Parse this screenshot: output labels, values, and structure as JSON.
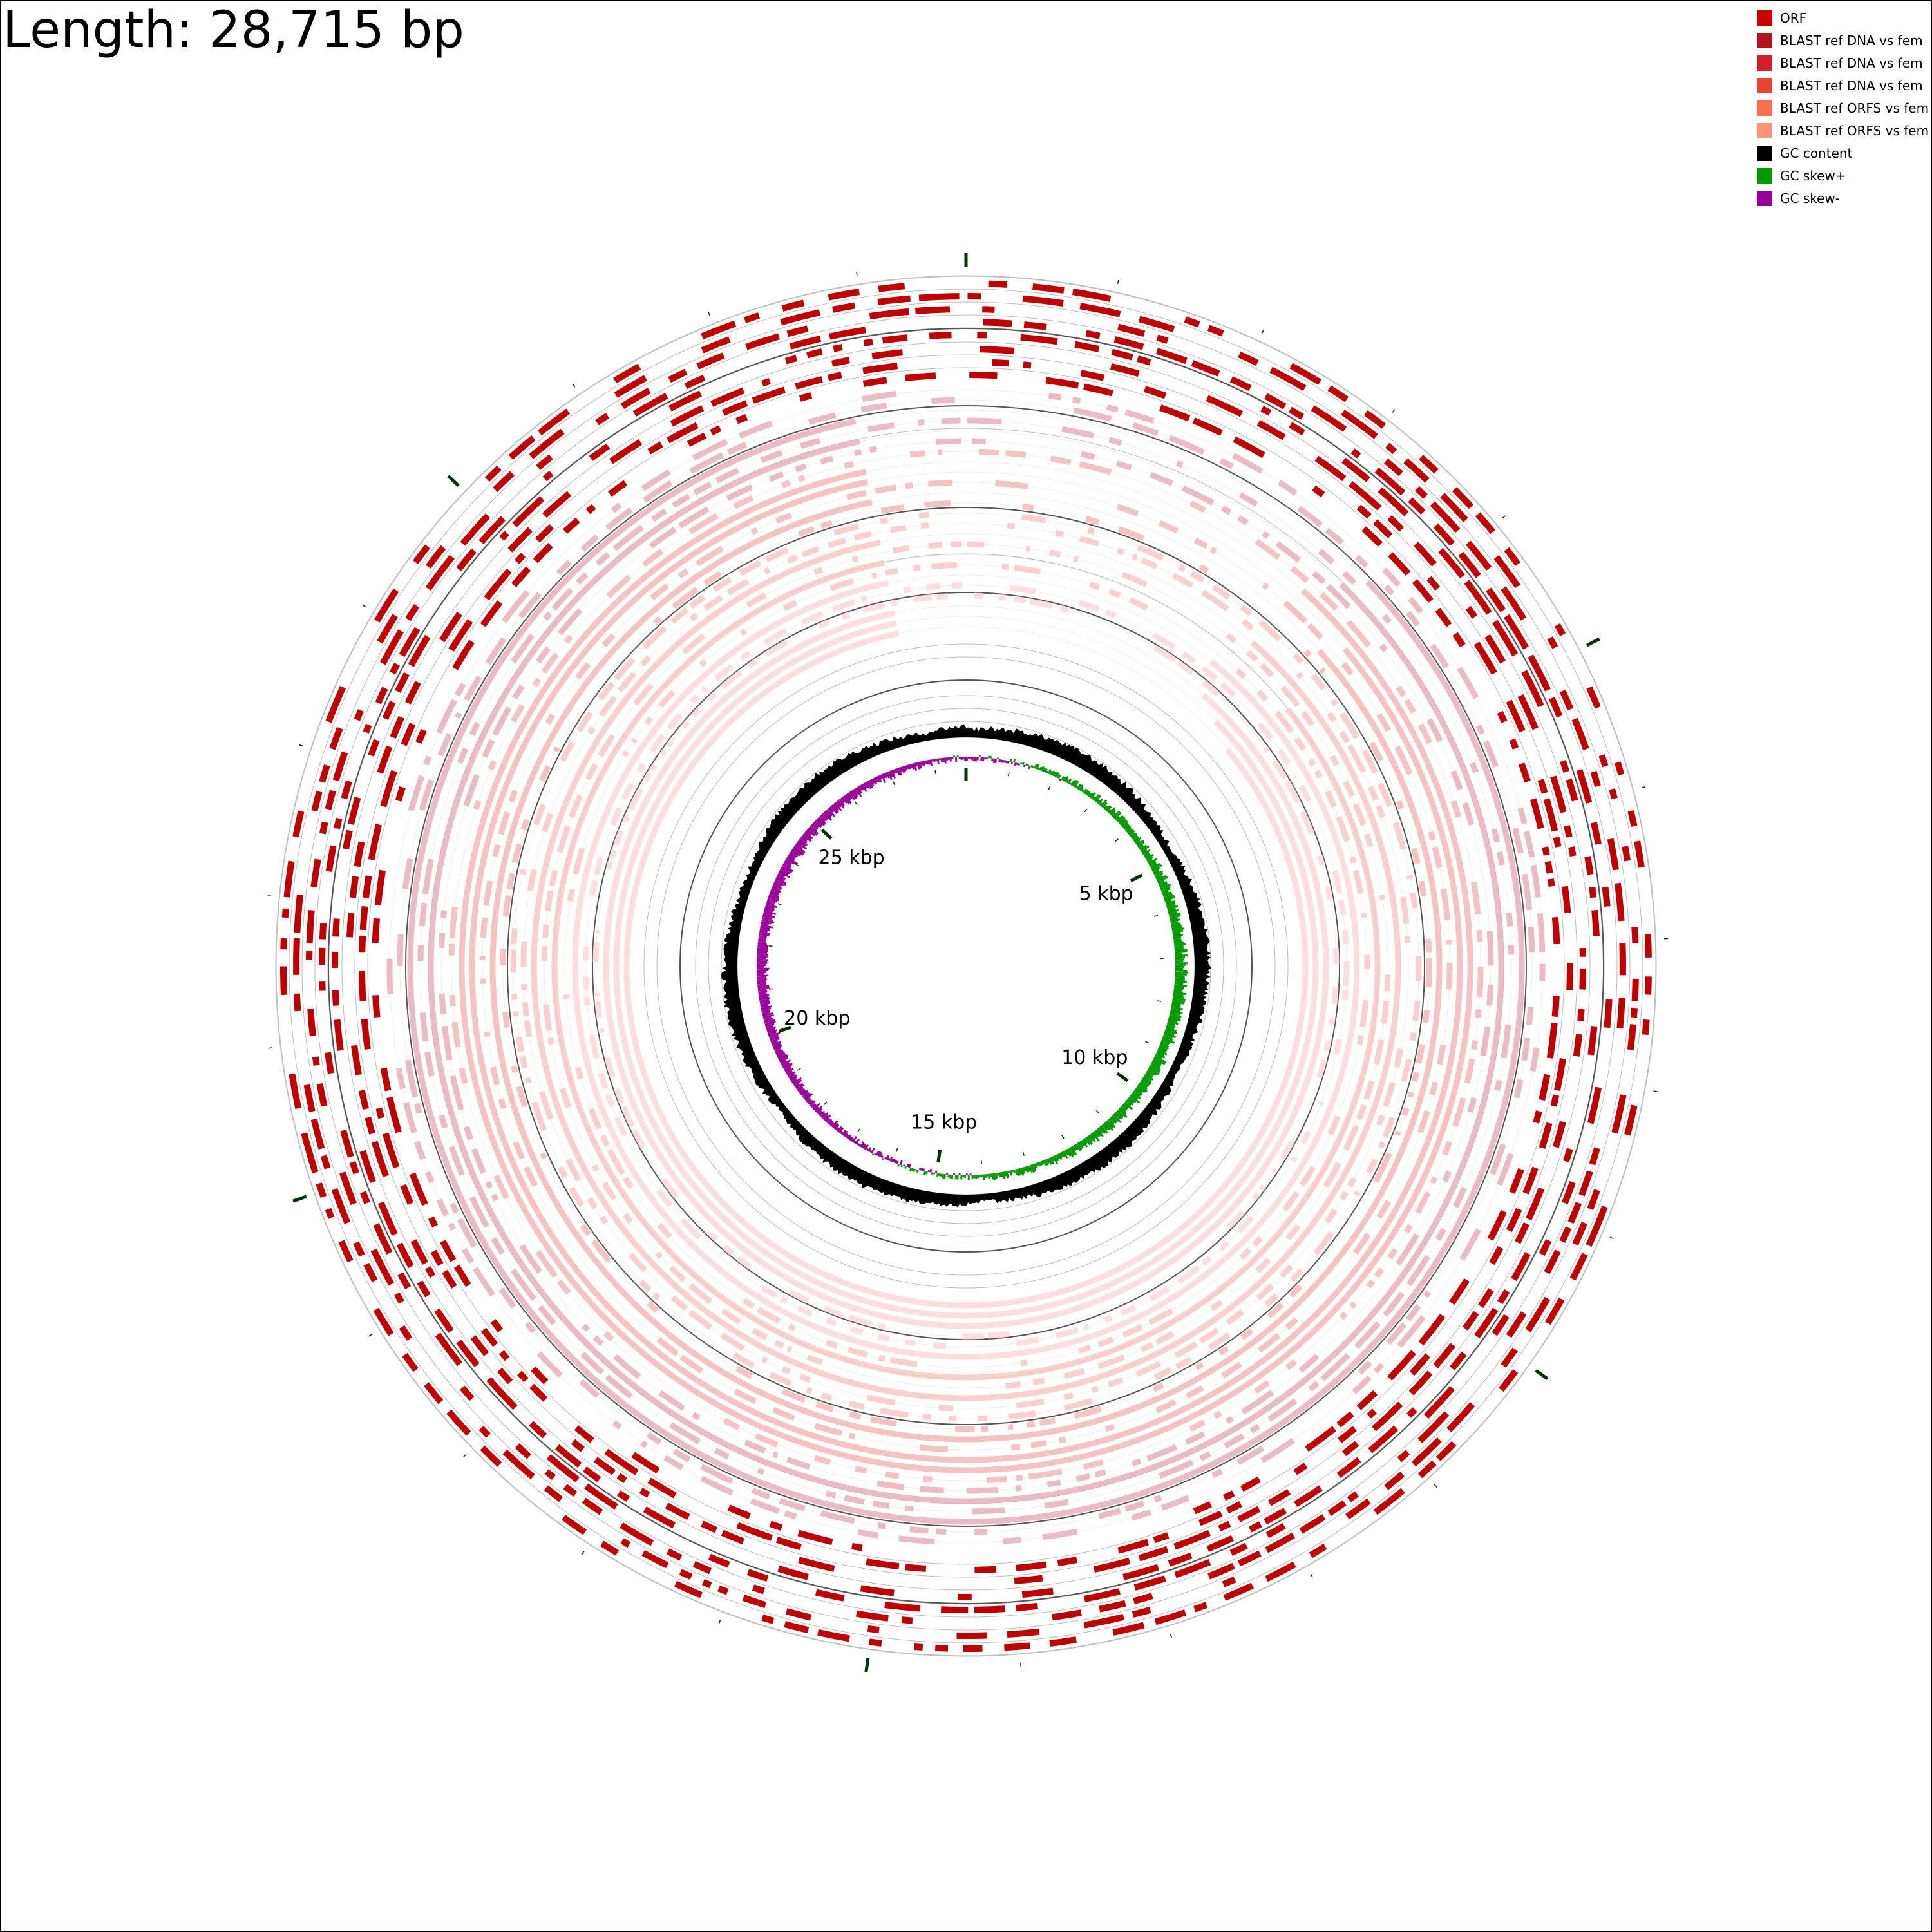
{
  "title": "Length: 28,715 bp",
  "sequence_length": 28715,
  "legend": [
    {
      "label": "ORF",
      "color": "#c80000"
    },
    {
      "label": "BLAST ref DNA vs fem",
      "color": "#b01420"
    },
    {
      "label": "BLAST ref DNA vs fem",
      "color": "#d21e2a"
    },
    {
      "label": "BLAST ref DNA vs fem",
      "color": "#e84430"
    },
    {
      "label": "BLAST ref ORFS vs fem",
      "color": "#f87050"
    },
    {
      "label": "BLAST ref ORFS vs fem",
      "color": "#fa9577"
    },
    {
      "label": "GC content",
      "color": "#000000"
    },
    {
      "label": "GC skew+",
      "color": "#009900"
    },
    {
      "label": "GC skew-",
      "color": "#990099"
    }
  ],
  "scale_labels": [
    "5 kbp",
    "10 kbp",
    "15 kbp",
    "20 kbp",
    "25 kbp"
  ],
  "colors": {
    "orf": "#c00000",
    "blast_dna_1": "#e8b0b8",
    "blast_dna_2": "#f4b8b8",
    "blast_orf_1": "#f8c8c4",
    "blast_orf_2": "#fbd8d8",
    "ring_line": "#bbbbbb",
    "major_ring_line": "#555555",
    "tick": "#003300",
    "gc_content": "#000000",
    "gc_skew_pos": "#009900",
    "gc_skew_neg": "#990099"
  }
}
